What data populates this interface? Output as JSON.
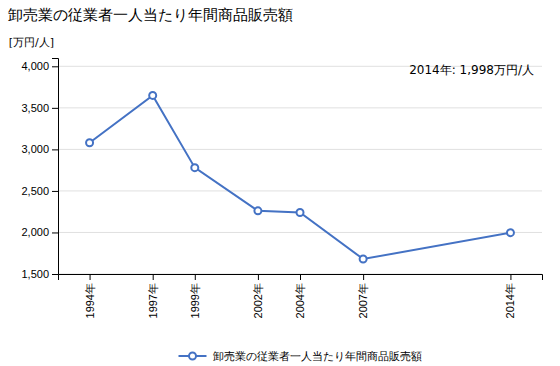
{
  "chart_data": {
    "type": "line",
    "title": "卸売業の従業者一人当たり年間商品販売額",
    "ylabel": "[万円/人]",
    "annotation": "2014年: 1,998万円/人",
    "x": [
      1994,
      1997,
      1999,
      2002,
      2004,
      2007,
      2014
    ],
    "xlim": [
      1992.5,
      2015.5
    ],
    "xticks": [
      {
        "value": 1994,
        "label": "1994年"
      },
      {
        "value": 1997,
        "label": "1997年"
      },
      {
        "value": 1999,
        "label": "1999年"
      },
      {
        "value": 2002,
        "label": "2002年"
      },
      {
        "value": 2004,
        "label": "2004年"
      },
      {
        "value": 2007,
        "label": "2007年"
      },
      {
        "value": 2014,
        "label": "2014年"
      }
    ],
    "series": [
      {
        "name": "卸売業の従業者一人当たり年間商品販売額",
        "color": "#4472C4",
        "marker": "circle",
        "values": [
          3080,
          3650,
          2780,
          2260,
          2240,
          1680,
          1998
        ]
      }
    ],
    "ylim": [
      1500,
      4100
    ],
    "yticks": [
      {
        "value": 1500,
        "label": "1,500"
      },
      {
        "value": 2000,
        "label": "2,000"
      },
      {
        "value": 2500,
        "label": "2,500"
      },
      {
        "value": 3000,
        "label": "3,000"
      },
      {
        "value": 3500,
        "label": "3,500"
      },
      {
        "value": 4000,
        "label": "4,000"
      }
    ],
    "grid": true,
    "legend": "bottom"
  }
}
